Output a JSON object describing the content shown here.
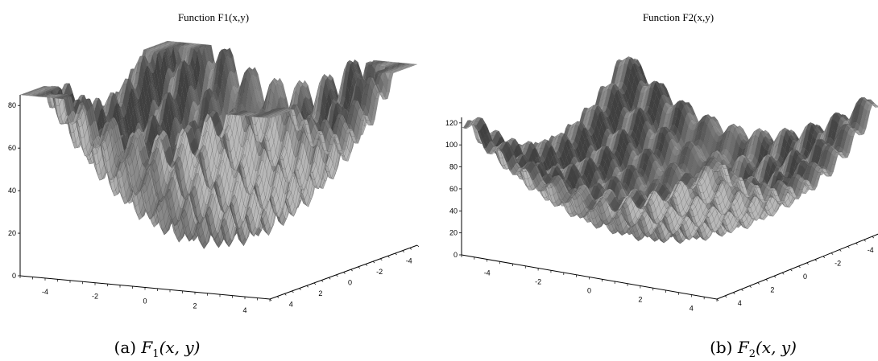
{
  "chart_data": [
    {
      "id": "F1",
      "type": "surface",
      "title": "Function F1(x,y)",
      "caption_label": "(a)",
      "caption_func": "F",
      "caption_sub": "1",
      "caption_args": "(x, y)",
      "zlim": [
        0,
        85
      ],
      "z_ticks": [
        "0",
        "20",
        "40",
        "60",
        "80"
      ],
      "z_tick_values": [
        0,
        20,
        40,
        60,
        80
      ],
      "x_ticks": [
        "-4",
        "-2",
        "0",
        "2",
        "4"
      ],
      "x_tick_values": [
        -4,
        -2,
        0,
        2,
        4
      ],
      "y_ticks": [
        "4",
        "2",
        "0",
        "-2",
        "-4"
      ],
      "y_tick_values": [
        4,
        2,
        0,
        -2,
        -4
      ],
      "xlim": [
        -5,
        5
      ],
      "ylim": [
        -5,
        5
      ],
      "colors": {
        "surface_dark": "#4a4a4a",
        "surface_light": "#9a9a9a",
        "edge": "#2e2e2e"
      }
    },
    {
      "id": "F2",
      "type": "surface",
      "title": "Function F2(x,y)",
      "caption_label": "(b)",
      "caption_func": "F",
      "caption_sub": "2",
      "caption_args": "(x, y)",
      "zlim": [
        0,
        125
      ],
      "z_ticks": [
        "0",
        "20",
        "40",
        "60",
        "80",
        "100",
        "120"
      ],
      "z_tick_values": [
        0,
        20,
        40,
        60,
        80,
        100,
        120
      ],
      "x_ticks": [
        "-4",
        "-2",
        "0",
        "2",
        "4"
      ],
      "x_tick_values": [
        -4,
        -2,
        0,
        2,
        4
      ],
      "y_ticks": [
        "4",
        "2",
        "0",
        "-2",
        "-4"
      ],
      "y_tick_values": [
        4,
        2,
        0,
        -2,
        -4
      ],
      "xlim": [
        -5,
        5
      ],
      "ylim": [
        -5,
        5
      ],
      "colors": {
        "surface_dark": "#4a4a4a",
        "surface_light": "#9a9a9a",
        "edge": "#2e2e2e"
      }
    }
  ]
}
